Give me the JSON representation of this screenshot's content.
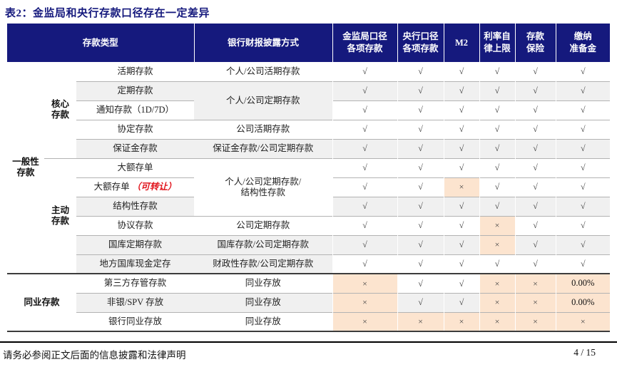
{
  "title": "表2：金监局和央行存款口径存在一定差异",
  "footer": {
    "disclaimer": "请务必参阅正文后面的信息披露和法律声明",
    "page": "4 / 15"
  },
  "colors": {
    "header_navy": "#15197d",
    "zebra_gray": "#f0f0f0",
    "highlight_peach": "#fce4cf",
    "note_red": "#e1151d"
  },
  "table": {
    "headers": {
      "deposit_type": "存款类型",
      "disclosure": "银行财报披露方式",
      "marks": [
        "金监局口径\n各项存款",
        "央行口径\n各项存款",
        "M2",
        "利率自\n律上限",
        "存款\n保险",
        "缴纳\n准备金"
      ]
    },
    "rows": [
      {
        "group": {
          "label": "一般性\n存款",
          "span": 11,
          "colspan": 1
        },
        "sub": {
          "label": "核心\n存款",
          "span": 5
        },
        "type": {
          "text": "活期存款",
          "bg": "w"
        },
        "disc": {
          "text": "个人/公司活期存款",
          "span": 1,
          "bg": "w"
        },
        "marks": [
          {
            "v": "√",
            "bg": "w"
          },
          {
            "v": "√",
            "bg": "w"
          },
          {
            "v": "√",
            "bg": "w"
          },
          {
            "v": "√",
            "bg": "w"
          },
          {
            "v": "√",
            "bg": "w"
          },
          {
            "v": "√",
            "bg": "w"
          }
        ]
      },
      {
        "type": {
          "text": "定期存款",
          "bg": "g"
        },
        "disc": {
          "text": "个人/公司定期存款",
          "span": 2,
          "bg": "g"
        },
        "marks": [
          {
            "v": "√",
            "bg": "g"
          },
          {
            "v": "√",
            "bg": "g"
          },
          {
            "v": "√",
            "bg": "g"
          },
          {
            "v": "√",
            "bg": "g"
          },
          {
            "v": "√",
            "bg": "g"
          },
          {
            "v": "√",
            "bg": "g"
          }
        ]
      },
      {
        "type": {
          "text": "通知存款（1D/7D）",
          "bg": "w"
        },
        "marks": [
          {
            "v": "√",
            "bg": "w"
          },
          {
            "v": "√",
            "bg": "w"
          },
          {
            "v": "√",
            "bg": "w"
          },
          {
            "v": "√",
            "bg": "w"
          },
          {
            "v": "√",
            "bg": "w"
          },
          {
            "v": "√",
            "bg": "w"
          }
        ]
      },
      {
        "type": {
          "text": "协定存款",
          "bg": "w"
        },
        "disc": {
          "text": "公司活期存款",
          "span": 1,
          "bg": "w"
        },
        "marks": [
          {
            "v": "√",
            "bg": "w"
          },
          {
            "v": "√",
            "bg": "w"
          },
          {
            "v": "√",
            "bg": "w"
          },
          {
            "v": "√",
            "bg": "w"
          },
          {
            "v": "√",
            "bg": "w"
          },
          {
            "v": "√",
            "bg": "w"
          }
        ]
      },
      {
        "type": {
          "text": "保证金存款",
          "bg": "g"
        },
        "disc": {
          "text": "保证金存款/公司定期存款",
          "span": 1,
          "bg": "g"
        },
        "marks": [
          {
            "v": "√",
            "bg": "g"
          },
          {
            "v": "√",
            "bg": "g"
          },
          {
            "v": "√",
            "bg": "g"
          },
          {
            "v": "√",
            "bg": "g"
          },
          {
            "v": "√",
            "bg": "g"
          },
          {
            "v": "√",
            "bg": "g"
          }
        ]
      },
      {
        "sub": {
          "label": "主动\n存款",
          "span": 6
        },
        "type": {
          "text": "大额存单",
          "bg": "w"
        },
        "disc": {
          "text": "个人/公司定期存款/\n结构性存款",
          "span": 3,
          "bg": "w"
        },
        "marks": [
          {
            "v": "√",
            "bg": "w"
          },
          {
            "v": "√",
            "bg": "w"
          },
          {
            "v": "√",
            "bg": "w"
          },
          {
            "v": "√",
            "bg": "w"
          },
          {
            "v": "√",
            "bg": "w"
          },
          {
            "v": "√",
            "bg": "w"
          }
        ]
      },
      {
        "type": {
          "text": "大额存单",
          "suffix": "（可转让）",
          "bg": "w"
        },
        "marks": [
          {
            "v": "√",
            "bg": "w"
          },
          {
            "v": "√",
            "bg": "w"
          },
          {
            "v": "×",
            "bg": "p"
          },
          {
            "v": "√",
            "bg": "w"
          },
          {
            "v": "√",
            "bg": "w"
          },
          {
            "v": "√",
            "bg": "w"
          }
        ]
      },
      {
        "type": {
          "text": "结构性存款",
          "bg": "g"
        },
        "marks": [
          {
            "v": "√",
            "bg": "g"
          },
          {
            "v": "√",
            "bg": "g"
          },
          {
            "v": "√",
            "bg": "g"
          },
          {
            "v": "√",
            "bg": "g"
          },
          {
            "v": "√",
            "bg": "g"
          },
          {
            "v": "√",
            "bg": "g"
          }
        ]
      },
      {
        "type": {
          "text": "协议存款",
          "bg": "w"
        },
        "disc": {
          "text": "公司定期存款",
          "span": 1,
          "bg": "w"
        },
        "marks": [
          {
            "v": "√",
            "bg": "w"
          },
          {
            "v": "√",
            "bg": "w"
          },
          {
            "v": "√",
            "bg": "w"
          },
          {
            "v": "×",
            "bg": "p"
          },
          {
            "v": "√",
            "bg": "w"
          },
          {
            "v": "√",
            "bg": "w"
          }
        ]
      },
      {
        "type": {
          "text": "国库定期存款",
          "bg": "g"
        },
        "disc": {
          "text": "国库存款/公司定期存款",
          "span": 1,
          "bg": "g"
        },
        "marks": [
          {
            "v": "√",
            "bg": "g"
          },
          {
            "v": "√",
            "bg": "g"
          },
          {
            "v": "√",
            "bg": "g"
          },
          {
            "v": "×",
            "bg": "p"
          },
          {
            "v": "√",
            "bg": "g"
          },
          {
            "v": "√",
            "bg": "g"
          }
        ]
      },
      {
        "type": {
          "text": "地方国库现金定存",
          "bg": "g"
        },
        "disc": {
          "text": "财政性存款/公司定期存款",
          "span": 1,
          "bg": "g"
        },
        "marks": [
          {
            "v": "√",
            "bg": "w"
          },
          {
            "v": "√",
            "bg": "w"
          },
          {
            "v": "√",
            "bg": "w"
          },
          {
            "v": "√",
            "bg": "w"
          },
          {
            "v": "√",
            "bg": "w"
          },
          {
            "v": "√",
            "bg": "w"
          }
        ]
      },
      {
        "heavy": true,
        "group": {
          "label": "同业存款",
          "span": 3,
          "colspan": 2
        },
        "type": {
          "text": "第三方存管存款",
          "bg": "w"
        },
        "disc": {
          "text": "同业存放",
          "span": 1,
          "bg": "w"
        },
        "marks": [
          {
            "v": "×",
            "bg": "p"
          },
          {
            "v": "√",
            "bg": "w"
          },
          {
            "v": "√",
            "bg": "w"
          },
          {
            "v": "×",
            "bg": "p"
          },
          {
            "v": "×",
            "bg": "p"
          },
          {
            "v": "0.00%",
            "bg": "p"
          }
        ]
      },
      {
        "type": {
          "text": "非银/SPV 存放",
          "bg": "g"
        },
        "disc": {
          "text": "同业存放",
          "span": 1,
          "bg": "g"
        },
        "marks": [
          {
            "v": "×",
            "bg": "p"
          },
          {
            "v": "√",
            "bg": "g"
          },
          {
            "v": "√",
            "bg": "g"
          },
          {
            "v": "×",
            "bg": "p"
          },
          {
            "v": "×",
            "bg": "p"
          },
          {
            "v": "0.00%",
            "bg": "p"
          }
        ]
      },
      {
        "type": {
          "text": "银行同业存放",
          "bg": "w"
        },
        "disc": {
          "text": "同业存放",
          "span": 1,
          "bg": "w"
        },
        "marks": [
          {
            "v": "×",
            "bg": "p"
          },
          {
            "v": "×",
            "bg": "p"
          },
          {
            "v": "×",
            "bg": "p"
          },
          {
            "v": "×",
            "bg": "p"
          },
          {
            "v": "×",
            "bg": "p"
          },
          {
            "v": "×",
            "bg": "p"
          }
        ]
      }
    ]
  }
}
